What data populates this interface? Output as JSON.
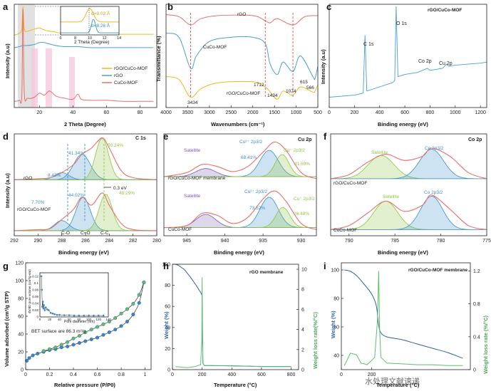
{
  "chart_data": [
    {
      "id": "a",
      "type": "line",
      "title": "",
      "xlabel": "2 Theta (Degree)",
      "ylabel": "Intensity (a.u)",
      "xlim": [
        5,
        90
      ],
      "xticks": [
        20,
        40,
        60,
        80
      ],
      "series": [
        {
          "name": "rGO/CuCo-MOF",
          "color": "#f2b71e",
          "x": [
            5,
            8,
            9.5,
            10.2,
            11,
            13,
            17,
            20,
            23,
            26,
            30,
            33,
            40,
            43,
            50,
            60,
            70,
            80,
            88
          ],
          "y": [
            0.7,
            0.72,
            0.76,
            0.98,
            0.76,
            0.74,
            0.76,
            0.77,
            0.75,
            0.74,
            0.73,
            0.72,
            0.72,
            0.72,
            0.71,
            0.71,
            0.71,
            0.71,
            0.71
          ]
        },
        {
          "name": "rGO",
          "color": "#4a9fd4",
          "x": [
            5,
            8,
            10,
            12,
            17,
            20,
            23,
            25,
            30,
            35,
            43,
            50,
            60,
            70,
            80,
            88
          ],
          "y": [
            0.58,
            0.59,
            0.6,
            0.6,
            0.61,
            0.63,
            0.63,
            0.62,
            0.6,
            0.59,
            0.59,
            0.58,
            0.58,
            0.58,
            0.58,
            0.58
          ]
        },
        {
          "name": "CuCo-MOF",
          "color": "#e8706a",
          "x": [
            5,
            8,
            9.5,
            10.2,
            11,
            13,
            17,
            20,
            23,
            26,
            30,
            35,
            40,
            43,
            45,
            50,
            60,
            70,
            80,
            88
          ],
          "y": [
            0.06,
            0.07,
            0.12,
            0.95,
            0.14,
            0.09,
            0.1,
            0.14,
            0.12,
            0.16,
            0.11,
            0.09,
            0.08,
            0.13,
            0.08,
            0.07,
            0.07,
            0.06,
            0.06,
            0.06
          ]
        }
      ],
      "inset": {
        "xlabel": "2 Theta (Degree)",
        "xlim": [
          6,
          14
        ],
        "xticks": [
          6,
          8,
          10,
          12,
          14
        ],
        "labels": [
          "d=9.03 Å",
          "d=8.26 Å"
        ]
      }
    },
    {
      "id": "b",
      "type": "line",
      "title": "",
      "xlabel": "Wavenumbers (cm⁻¹)",
      "ylabel": "Transmittance (%)",
      "xlim": [
        4000,
        500
      ],
      "xticks": [
        4000,
        3500,
        3000,
        2500,
        2000,
        1500,
        1000,
        500
      ],
      "series": [
        {
          "name": "rGO",
          "color": "#e8706a",
          "x": [
            4000,
            3700,
            3434,
            3200,
            2800,
            2000,
            1712,
            1600,
            1434,
            1074,
            800,
            500
          ],
          "y": [
            0.9,
            0.88,
            0.8,
            0.86,
            0.89,
            0.89,
            0.84,
            0.82,
            0.86,
            0.8,
            0.88,
            0.89
          ]
        },
        {
          "name": "CuCo-MOF",
          "color": "#4a9fd4",
          "x": [
            4000,
            3700,
            3434,
            3300,
            3000,
            2500,
            2000,
            1712,
            1600,
            1434,
            1300,
            1074,
            900,
            615,
            566,
            500
          ],
          "y": [
            0.72,
            0.68,
            0.38,
            0.5,
            0.64,
            0.68,
            0.68,
            0.62,
            0.42,
            0.32,
            0.44,
            0.35,
            0.5,
            0.3,
            0.28,
            0.4
          ]
        },
        {
          "name": "rGO/CuCo-MOF",
          "color": "#f2b71e",
          "x": [
            4000,
            3700,
            3434,
            3200,
            2800,
            2000,
            1712,
            1600,
            1434,
            1300,
            1074,
            900,
            615,
            566,
            500
          ],
          "y": [
            0.3,
            0.27,
            0.1,
            0.18,
            0.24,
            0.25,
            0.2,
            0.15,
            0.08,
            0.16,
            0.12,
            0.2,
            0.15,
            0.16,
            0.22
          ]
        }
      ],
      "annotations": [
        "3434",
        "1712",
        "1434",
        "1074",
        "615",
        "566"
      ]
    },
    {
      "id": "c",
      "type": "line",
      "title": "rGO/CuCo-MOF",
      "xlabel": "Binding energy (eV)",
      "ylabel": "Intensity (a.u)",
      "xlim": [
        0,
        1250
      ],
      "xticks": [
        0,
        200,
        400,
        600,
        800,
        1000,
        1200
      ],
      "series": [
        {
          "name": "rGO/CuCo-MOF",
          "color": "#4a9fd4",
          "x": [
            0,
            200,
            270,
            284,
            298,
            400,
            500,
            520,
            531,
            545,
            600,
            700,
            780,
            800,
            900,
            930,
            950,
            1000,
            1100,
            1200,
            1250
          ],
          "y": [
            0.1,
            0.12,
            0.14,
            0.7,
            0.16,
            0.2,
            0.24,
            0.26,
            0.98,
            0.3,
            0.32,
            0.34,
            0.38,
            0.36,
            0.38,
            0.42,
            0.4,
            0.41,
            0.42,
            0.43,
            0.44
          ]
        }
      ],
      "annotations": [
        "C 1s",
        "O 1s",
        "Co 2p",
        "Cu 2p"
      ]
    },
    {
      "id": "d",
      "type": "line",
      "title": "C 1s",
      "xlabel": "Binding energy (eV)",
      "ylabel": "Intensity (a.u)",
      "xlim": [
        292,
        280
      ],
      "xticks": [
        292,
        290,
        288,
        286,
        284,
        282,
        280
      ],
      "series": [
        {
          "name": "rGO envelope",
          "color": "#e8706a",
          "x": [
            292,
            290,
            289,
            288,
            287,
            286.3,
            285.5,
            284.6,
            284,
            283,
            282,
            280
          ],
          "y": [
            0.55,
            0.56,
            0.57,
            0.62,
            0.7,
            0.8,
            0.86,
            0.96,
            0.86,
            0.64,
            0.57,
            0.55
          ]
        },
        {
          "name": "rGO/CuCo-MOF envelope",
          "color": "#e8706a",
          "x": [
            292,
            290,
            289,
            288,
            287,
            286.3,
            285.5,
            284.6,
            284,
            283,
            282,
            280
          ],
          "y": [
            0.05,
            0.06,
            0.07,
            0.16,
            0.26,
            0.38,
            0.3,
            0.42,
            0.3,
            0.12,
            0.06,
            0.05
          ]
        }
      ],
      "labels": [
        "rGO",
        "rGO/CuCo-MOF",
        "41.34%",
        "8.42%",
        "50.24%",
        "44.02%",
        "7.70%",
        "48.29%",
        "0.3 eV",
        "C-O",
        "C=O",
        "C-C"
      ]
    },
    {
      "id": "e",
      "type": "line",
      "title": "Cu 2p",
      "xlabel": "Binding energy (eV)",
      "ylabel": "",
      "xlim": [
        948,
        928
      ],
      "xticks": [
        945,
        940,
        935,
        930
      ],
      "series": [
        {
          "name": "rGO/CuCo-MOF membrane",
          "color": "#e8706a",
          "x": [
            948,
            945,
            943,
            941,
            939,
            937,
            935,
            933.5,
            932,
            930,
            928
          ],
          "y": [
            0.58,
            0.62,
            0.7,
            0.68,
            0.63,
            0.68,
            0.82,
            0.92,
            0.84,
            0.62,
            0.56
          ]
        },
        {
          "name": "CuCo-MOF",
          "color": "#e8706a",
          "x": [
            948,
            945,
            943,
            941,
            939,
            937,
            935,
            933.5,
            932,
            930,
            928
          ],
          "y": [
            0.08,
            0.1,
            0.22,
            0.2,
            0.12,
            0.18,
            0.36,
            0.44,
            0.34,
            0.12,
            0.06
          ]
        }
      ],
      "labels": [
        "Satellite",
        "Cu²⁺ 2p3/2",
        "68.41%",
        "Cu⁺ 2p3/2",
        "31.59%",
        "rGO/CuCo-MOF membrane",
        "73.52%",
        "26.48%",
        "CuCo-MOF"
      ]
    },
    {
      "id": "f",
      "type": "line",
      "title": "Co 2p",
      "xlabel": "Binding energy (eV)",
      "ylabel": "",
      "xlim": [
        792,
        775
      ],
      "xticks": [
        790,
        785,
        780,
        775
      ],
      "series": [
        {
          "name": "rGO/CuCo-MOF",
          "color": "#e8706a",
          "x": [
            792,
            790,
            788,
            786,
            784,
            782,
            781,
            779,
            777,
            775
          ],
          "y": [
            0.56,
            0.6,
            0.72,
            0.8,
            0.74,
            0.78,
            0.86,
            0.78,
            0.62,
            0.56
          ]
        },
        {
          "name": "CuCo-MOF",
          "color": "#e8706a",
          "x": [
            792,
            790,
            788,
            786,
            784,
            782,
            781,
            779,
            777,
            775
          ],
          "y": [
            0.06,
            0.1,
            0.22,
            0.34,
            0.24,
            0.3,
            0.4,
            0.26,
            0.1,
            0.06
          ]
        }
      ],
      "labels": [
        "Satellite",
        "Co 2p3/2",
        "rGO/CuCo-MOF",
        "CuCo-MOF"
      ]
    },
    {
      "id": "g",
      "type": "scatter",
      "title": "",
      "xlabel": "Relative pressure (P/P0)",
      "ylabel": "Volume adsorbed (cm³/g STP)",
      "xlim": [
        0,
        1.05
      ],
      "ylim": [
        0,
        120
      ],
      "xticks": [
        0,
        0.2,
        0.4,
        0.6,
        0.8,
        1.0
      ],
      "yticks": [
        0,
        20,
        40,
        60,
        80,
        100,
        120
      ],
      "series": [
        {
          "name": "adsorption",
          "color": "#3b86c7",
          "x": [
            0.01,
            0.03,
            0.06,
            0.1,
            0.15,
            0.2,
            0.25,
            0.3,
            0.35,
            0.4,
            0.45,
            0.5,
            0.55,
            0.6,
            0.65,
            0.7,
            0.75,
            0.8,
            0.85,
            0.9,
            0.95,
            0.99
          ],
          "y": [
            10,
            13,
            16,
            18,
            20,
            22,
            23,
            25,
            26,
            28,
            30,
            32,
            34,
            36,
            39,
            42,
            45,
            49,
            54,
            62,
            75,
            98
          ]
        },
        {
          "name": "desorption",
          "color": "#5fbf6f",
          "x": [
            0.99,
            0.95,
            0.9,
            0.85,
            0.8,
            0.75,
            0.7,
            0.65,
            0.6,
            0.55,
            0.5,
            0.45,
            0.4,
            0.35,
            0.3,
            0.25,
            0.2,
            0.15
          ],
          "y": [
            98,
            84,
            74,
            68,
            63,
            58,
            54,
            51,
            48,
            45,
            42,
            38,
            35,
            31,
            28,
            25,
            23,
            21
          ]
        }
      ],
      "annotation": "BET surface are 86.3 m²/g",
      "inset": {
        "xlabel": "Pore diameter (nm)",
        "ylabel": "dV/dD pore volume (cm³/g·nm)",
        "xticks": [
          0,
          20,
          40,
          60,
          80,
          100,
          120,
          140
        ],
        "yticks": [
          0,
          0.02,
          0.04,
          0.06,
          0.08,
          0.1,
          0.12
        ]
      }
    },
    {
      "id": "h",
      "type": "line",
      "title": "rGO membrane",
      "xlabel": "Temperature (°C)",
      "ylabel": "Weight (%)",
      "y2label": "Weight loss rate(%/°C)",
      "xlim": [
        0,
        850
      ],
      "xticks": [
        0,
        200,
        400,
        600,
        800
      ],
      "ylim": [
        0,
        100
      ],
      "yticks": [
        0,
        20,
        40,
        60,
        80,
        100
      ],
      "y2ticks": [
        0,
        2,
        4,
        6,
        8,
        10
      ],
      "series": [
        {
          "name": "Weight",
          "color": "#2f63a8",
          "x": [
            20,
            40,
            80,
            120,
            160,
            195,
            200,
            205,
            215,
            400,
            600,
            800
          ],
          "y": [
            100,
            99,
            95,
            88,
            80,
            72,
            70,
            6,
            4,
            3.5,
            3,
            3
          ]
        },
        {
          "name": "Weight loss rate",
          "color": "#5fbf6f",
          "x": [
            20,
            100,
            150,
            190,
            198,
            200,
            202,
            206,
            215,
            400,
            600,
            800
          ],
          "y": [
            0.3,
            0.2,
            0.3,
            0.5,
            3,
            9.2,
            3,
            0.6,
            0.4,
            0.4,
            0.3,
            0.3
          ]
        }
      ]
    },
    {
      "id": "i",
      "type": "line",
      "title": "rGO/CuCo-MOF membrane",
      "xlabel": "Temperature (°C)",
      "ylabel": "Weight (%)",
      "y2label": "Weight loss rate (%/°C)",
      "xlim": [
        0,
        850
      ],
      "xticks": [
        0,
        200
      ],
      "ylim": [
        30,
        100
      ],
      "yticks": [
        40,
        60,
        80,
        100
      ],
      "y2ticks": [
        0,
        0.4,
        0.8,
        1.2
      ],
      "series": [
        {
          "name": "Weight",
          "color": "#2f63a8",
          "x": [
            20,
            60,
            100,
            150,
            200,
            230,
            245,
            260,
            300,
            400,
            500,
            600,
            700,
            800
          ],
          "y": [
            100,
            99,
            96,
            90,
            83,
            75,
            62,
            56,
            53,
            51,
            48,
            45,
            42,
            38
          ]
        },
        {
          "name": "Weight loss rate",
          "color": "#5fbf6f",
          "x": [
            20,
            60,
            100,
            130,
            170,
            220,
            238,
            246,
            252,
            260,
            300,
            400,
            500,
            600,
            700,
            800
          ],
          "y": [
            0.05,
            0.2,
            0.18,
            0.08,
            0.06,
            0.15,
            0.6,
            1.2,
            0.5,
            0.15,
            0.08,
            0.07,
            0.06,
            0.06,
            0.05,
            0.05
          ]
        }
      ]
    }
  ],
  "panel_letters": [
    "a",
    "b",
    "c",
    "d",
    "e",
    "f",
    "g",
    "h",
    "i"
  ],
  "watermark": "水处理文献速递"
}
